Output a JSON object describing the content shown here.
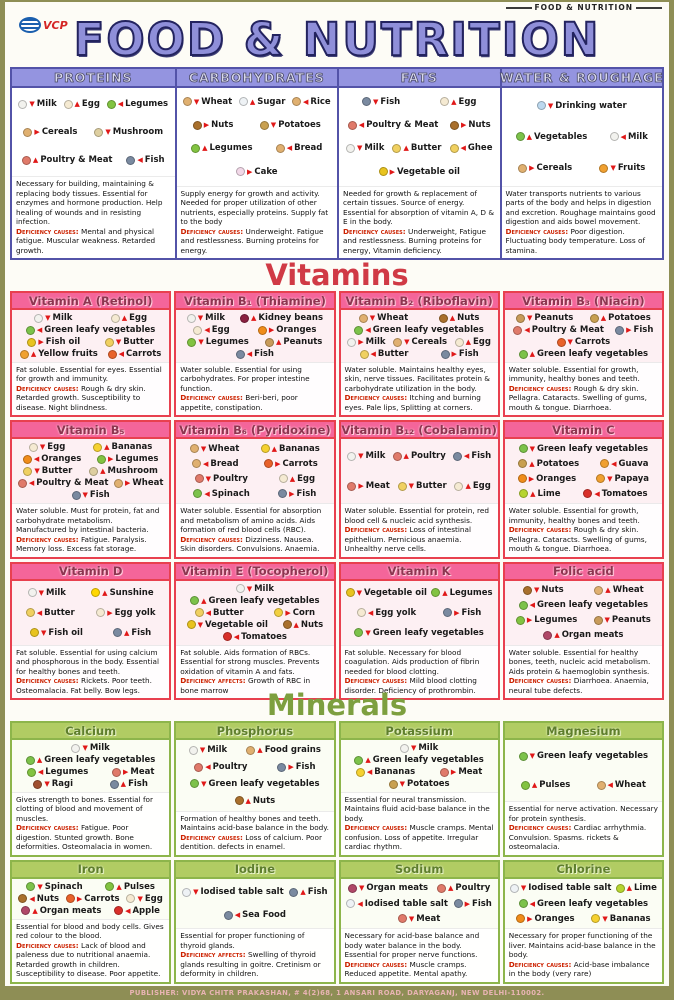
{
  "page": {
    "corner_label": "FOOD & NUTRITION",
    "logo_text": "VCP",
    "title": "FOOD & NUTRITION",
    "footer": "PUBLISHER: VIDYA CHITR PRAKASHAN, # 4(2)68, 1 ANSARI ROAD, DARYAGANJ, NEW DELHI-110002."
  },
  "colors": {
    "title_purple": "#8f8fd9",
    "macro_header_bg": "#9494e0",
    "vitamin_red": "#d03a45",
    "vitamin_header_pink": "#f4659a",
    "mineral_green": "#7d9f3f",
    "mineral_header_green": "#b1cc63",
    "deficiency_red": "#cc2200",
    "frame_olive": "#8e8e55"
  },
  "macros": {
    "columns": [
      {
        "title": "PROTEINS",
        "items": [
          "Milk",
          "Egg",
          "Legumes",
          "Cereals",
          "Mushroom",
          "Poultry & Meat",
          "Fish"
        ],
        "desc": "Necessary for building, maintaining & replacing body tissues. Essential for enzymes and hormone production. Help healing of wounds and in resisting infection.",
        "def_label": "Deficiency causes:",
        "def": "Mental and physical fatigue. Muscular weakness. Retarded growth."
      },
      {
        "title": "CARBOHYDRATES",
        "items": [
          "Wheat",
          "Sugar",
          "Rice",
          "Nuts",
          "Potatoes",
          "Legumes",
          "Bread",
          "Cake"
        ],
        "desc": "Supply energy for growth and activity. Needed for proper utilization of other nutrients, especially proteins. Supply fat to the body",
        "def_label": "Deficiency causes:",
        "def": "Underweight. Fatigue and restlessness. Burning proteins for energy."
      },
      {
        "title": "FATS",
        "items": [
          "Fish",
          "Egg",
          "Poultry & Meat",
          "Nuts",
          "Milk",
          "Butter",
          "Ghee",
          "Vegetable oil"
        ],
        "desc": "Needed for growth & replacement of certain tissues. Source of energy. Essential for absorption of vitamin A, D & E in the body.",
        "def_label": "Deficiency causes:",
        "def": "Underweight, Fatigue and restlessness. Burning proteins for energy, Vitamin deficiency."
      },
      {
        "title": "WATER & ROUGHAGE",
        "items": [
          "Drinking water",
          "Vegetables",
          "Milk",
          "Cereals",
          "Fruits"
        ],
        "desc": "Water transports nutrients to various parts of the body and helps in digestion and excretion. Roughage maintains good digestion and aids bowel movement.",
        "def_label": "Deficiency causes:",
        "def": "Poor digestion. Fluctuating body temperature. Loss of stamina."
      }
    ]
  },
  "vitamins": {
    "heading": "Vitamins",
    "cards": [
      {
        "title": "Vitamin A (Retinol)",
        "items": [
          "Milk",
          "Egg",
          "Green leafy vegetables",
          "Fish oil",
          "Butter",
          "Yellow fruits",
          "Carrots"
        ],
        "desc": "Fat soluble. Essential for eyes. Essential for growth and immunity.",
        "def_label": "Deficiency causes:",
        "def": "Rough & dry skin. Retarded growth. Susceptibility to disease. Night blindness."
      },
      {
        "title": "Vitamin B₁ (Thiamine)",
        "items": [
          "Milk",
          "Kidney beans",
          "Egg",
          "Oranges",
          "Legumes",
          "Peanuts",
          "Fish"
        ],
        "desc": "Water soluble. Essential for using carbohydrates. For proper intestine function.",
        "def_label": "Deficiency causes:",
        "def": "Beri-beri, poor appetite, constipation."
      },
      {
        "title": "Vitamin B₂ (Riboflavin)",
        "items": [
          "Wheat",
          "Nuts",
          "Green leafy vegetables",
          "Milk",
          "Cereals",
          "Egg",
          "Butter",
          "Fish"
        ],
        "desc": "Water soluble. Maintains healthy eyes, skin, nerve tissues. Facilitates protein & carbohydrate utilization in the body.",
        "def_label": "Deficiency causes:",
        "def": "Itching and burning eyes. Pale lips, Splitting at corners."
      },
      {
        "title": "Vitamin B₃ (Niacin)",
        "items": [
          "Peanuts",
          "Potatoes",
          "Poultry & Meat",
          "Fish",
          "Carrots",
          "Green leafy vegetables"
        ],
        "desc": "Water soluble. Essential for growth, immunity, healthy bones and teeth.",
        "def_label": "Deficiency causes:",
        "def": "Rough & dry skin. Pellagra. Cataracts. Swelling of gums, mouth & tongue. Diarrhoea."
      },
      {
        "title": "Vitamin B₅",
        "items": [
          "Egg",
          "Bananas",
          "Oranges",
          "Legumes",
          "Butter",
          "Mushroom",
          "Poultry & Meat",
          "Wheat",
          "Fish"
        ],
        "desc": "Water soluble. Must for protein, fat and carbohydrate metabolism. Manufactured by intestinal bacteria.",
        "def_label": "Deficiency causes:",
        "def": "Fatigue. Paralysis. Memory loss. Excess fat storage."
      },
      {
        "title": "Vitamin B₆ (Pyridoxine)",
        "items": [
          "Wheat",
          "Bananas",
          "Bread",
          "Carrots",
          "Poultry",
          "Egg",
          "Spinach",
          "Fish"
        ],
        "desc": "Water soluble. Essential for absorption and metabolism of amino acids. Aids formation of red blood cells (RBC).",
        "def_label": "Deficiency causes:",
        "def": "Dizziness. Nausea. Skin disorders. Convulsions. Anaemia."
      },
      {
        "title": "Vitamin B₁₂ (Cobalamin)",
        "items": [
          "Milk",
          "Poultry",
          "Fish",
          "Meat",
          "Butter",
          "Egg"
        ],
        "desc": "Water soluble. Essential for protein, red blood cell & nucleic acid synthesis.",
        "def_label": "Deficiency causes:",
        "def": "Loss of intestinal epithelium. Pernicious anaemia. Unhealthy nerve cells."
      },
      {
        "title": "Vitamin C",
        "items": [
          "Green leafy vegetables",
          "Potatoes",
          "Guava",
          "Oranges",
          "Papaya",
          "Lime",
          "Tomatoes"
        ],
        "desc": "Water soluble. Essential for growth, immunity, healthy bones and teeth.",
        "def_label": "Deficiency causes:",
        "def": "Rough & dry skin. Pellagra. Cataracts. Swelling of gums, mouth & tongue. Diarrhoea."
      },
      {
        "title": "Vitamin D",
        "items": [
          "Milk",
          "Sunshine",
          "Butter",
          "Egg yolk",
          "Fish oil",
          "Fish"
        ],
        "desc": "Fat soluble. Essential for using calcium and phosphorous in the body. Essential for healthy bones and teeth.",
        "def_label": "Deficiency causes:",
        "def": "Rickets. Poor teeth. Osteomalacia. Fat belly. Bow legs."
      },
      {
        "title": "Vitamin E (Tocopherol)",
        "items": [
          "Milk",
          "Green leafy vegetables",
          "Butter",
          "Corn",
          "Vegetable oil",
          "Nuts",
          "Tomatoes"
        ],
        "desc": "Fat soluble. Aids formation of RBCs. Essential for strong muscles. Prevents oxidation of vitamin A and fats.",
        "def_label": "Deficiency affects:",
        "def": "Growth of RBC in bone marrow"
      },
      {
        "title": "Vitamin K",
        "items": [
          "Vegetable oil",
          "Legumes",
          "Egg yolk",
          "Fish",
          "Green leafy vegetables"
        ],
        "desc": "Fat soluble. Necessary for blood coagulation. Aids production of fibrin needed for blood clotting.",
        "def_label": "Deficiency causes:",
        "def": "Mild blood clotting disorder. Deficiency of prothrombin."
      },
      {
        "title": "Folic acid",
        "items": [
          "Nuts",
          "Wheat",
          "Green leafy vegetables",
          "Legumes",
          "Peanuts",
          "Organ meats"
        ],
        "desc": "Water soluble. Essential for healthy bones, teeth, nucleic acid metabolism. Aids protein & haemoglobin synthesis.",
        "def_label": "Deficiency causes:",
        "def": "Diarrhoea. Anaemia, neural tube defects."
      }
    ]
  },
  "minerals": {
    "heading": "Minerals",
    "cards": [
      {
        "title": "Calcium",
        "items": [
          "Milk",
          "Green leafy vegetables",
          "Legumes",
          "Meat",
          "Ragi",
          "Fish"
        ],
        "desc": "Gives strength to bones. Essential for clotting of blood and movement of muscles.",
        "def_label": "Deficiency causes:",
        "def": "Fatigue. Poor digestion. Stunted growth. Bone deformities. Osteomalacia in women."
      },
      {
        "title": "Phosphorus",
        "items": [
          "Milk",
          "Food grains",
          "Poultry",
          "Fish",
          "Green leafy vegetables",
          "Nuts"
        ],
        "desc": "Formation of healthy bones and teeth. Maintains acid-base balance in the body.",
        "def_label": "Deficiency causes:",
        "def": "Loss of calcium. Poor dentition. defects in enamel."
      },
      {
        "title": "Potassium",
        "items": [
          "Milk",
          "Green leafy vegetables",
          "Bananas",
          "Meat",
          "Potatoes"
        ],
        "desc": "Essential for neural transmission. Maintains fluid acid-base balance in the body.",
        "def_label": "Deficiency causes:",
        "def": "Muscle cramps. Mental confusion. Loss of appetite. Irregular cardiac rhythm."
      },
      {
        "title": "Magnesium",
        "items": [
          "Green leafy vegetables",
          "Pulses",
          "Wheat"
        ],
        "desc": "Essential for nerve activation. Necessary for protein synthesis.",
        "def_label": "Deficiency causes:",
        "def": "Cardiac arrhythmia. Convulsion. Spasms. rickets & osteomalacia."
      },
      {
        "title": "Iron",
        "items": [
          "Spinach",
          "Pulses",
          "Nuts",
          "Carrots",
          "Egg",
          "Organ meats",
          "Apple"
        ],
        "desc": "Essential for blood and body cells. Gives red colour to the blood.",
        "def_label": "Deficiency causes:",
        "def": "Lack of blood and paleness due to nutritional anaemia. Retarded growth in children. Susceptibility to disease. Poor appetite."
      },
      {
        "title": "Iodine",
        "items": [
          "Iodised table salt",
          "Fish",
          "Sea Food"
        ],
        "desc": "Essential for proper functioning of thyroid glands.",
        "def_label": "Deficiency affects:",
        "def": "Swelling of thyroid glands resulting in goitre. Cretinism or deformity in children."
      },
      {
        "title": "Sodium",
        "items": [
          "Organ meats",
          "Poultry",
          "Iodised table salt",
          "Fish",
          "Meat"
        ],
        "desc": "Necessary for acid-base balance and body water balance in the body. Essential for proper nerve functions.",
        "def_label": "Deficiency causes:",
        "def": "Muscle cramps. Reduced appetite. Mental apathy."
      },
      {
        "title": "Chlorine",
        "items": [
          "Iodised table salt",
          "Lime",
          "Green leafy vegetables",
          "Oranges",
          "Bananas"
        ],
        "desc": "Necessary for proper functioning of the liver. Maintains acid-base balance in the body.",
        "def_label": "Deficiency causes:",
        "def": "Acid-base imbalance in the body (very rare)"
      }
    ]
  }
}
